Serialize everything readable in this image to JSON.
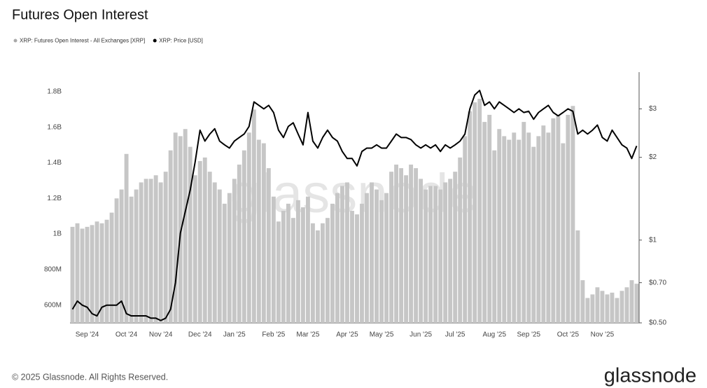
{
  "chart_data": {
    "type": "bar-line",
    "title": "Futures Open Interest",
    "watermark": "glassnode",
    "copyright": "© 2025 Glassnode. All Rights Reserved.",
    "brand": "glassnode",
    "categories": [
      null,
      null,
      null,
      "Sep '24",
      null,
      null,
      null,
      null,
      null,
      null,
      null,
      "Oct '24",
      null,
      null,
      null,
      null,
      null,
      null,
      "Nov '24",
      null,
      null,
      null,
      null,
      null,
      null,
      null,
      "Dec '24",
      null,
      null,
      null,
      null,
      null,
      null,
      "Jan '25",
      null,
      null,
      null,
      null,
      null,
      null,
      null,
      "Feb '25",
      null,
      null,
      null,
      null,
      null,
      null,
      "Mar '25",
      null,
      null,
      null,
      null,
      null,
      null,
      null,
      "Apr '25",
      null,
      null,
      null,
      null,
      null,
      null,
      "May '25",
      null,
      null,
      null,
      null,
      null,
      null,
      null,
      "Jun '25",
      null,
      null,
      null,
      null,
      null,
      null,
      "Jul '25",
      null,
      null,
      null,
      null,
      null,
      null,
      null,
      "Aug '25",
      null,
      null,
      null,
      null,
      null,
      null,
      "Sep '25",
      null,
      null,
      null,
      null,
      null,
      null,
      null,
      "Oct '25",
      null,
      null,
      null,
      null,
      null,
      null,
      "Nov '25",
      null,
      null,
      null,
      null,
      null,
      null,
      null
    ],
    "series": [
      {
        "name": "XRP: Futures Open Interest - All Exchanges [XRP]",
        "color": "#c6c6c6",
        "type": "bar",
        "axis": "y",
        "values": [
          1040000000,
          1060000000,
          1030000000,
          1040000000,
          1050000000,
          1070000000,
          1060000000,
          1080000000,
          1120000000,
          1200000000,
          1250000000,
          1450000000,
          1210000000,
          1250000000,
          1290000000,
          1310000000,
          1310000000,
          1330000000,
          1290000000,
          1350000000,
          1470000000,
          1570000000,
          1550000000,
          1590000000,
          1490000000,
          1330000000,
          1410000000,
          1430000000,
          1350000000,
          1290000000,
          1250000000,
          1170000000,
          1230000000,
          1310000000,
          1390000000,
          1470000000,
          1570000000,
          1700000000,
          1530000000,
          1510000000,
          1370000000,
          1210000000,
          1070000000,
          1130000000,
          1170000000,
          1090000000,
          1190000000,
          1150000000,
          1210000000,
          1060000000,
          1020000000,
          1060000000,
          1090000000,
          1170000000,
          1230000000,
          1270000000,
          1290000000,
          1130000000,
          1110000000,
          1170000000,
          1230000000,
          1290000000,
          1250000000,
          1190000000,
          1230000000,
          1350000000,
          1390000000,
          1370000000,
          1330000000,
          1390000000,
          1370000000,
          1310000000,
          1250000000,
          1270000000,
          1270000000,
          1250000000,
          1290000000,
          1310000000,
          1350000000,
          1430000000,
          1550000000,
          1690000000,
          1740000000,
          1760000000,
          1630000000,
          1670000000,
          1470000000,
          1590000000,
          1550000000,
          1530000000,
          1570000000,
          1530000000,
          1630000000,
          1570000000,
          1490000000,
          1550000000,
          1610000000,
          1570000000,
          1650000000,
          1670000000,
          1510000000,
          1670000000,
          1720000000,
          1020000000,
          740000000,
          640000000,
          660000000,
          700000000,
          680000000,
          660000000,
          670000000,
          640000000,
          680000000,
          700000000,
          740000000,
          720000000
        ]
      },
      {
        "name": "XRP: Price [USD]",
        "color": "#000000",
        "type": "line",
        "axis": "y2",
        "values": [
          0.56,
          0.6,
          0.58,
          0.57,
          0.54,
          0.53,
          0.57,
          0.58,
          0.58,
          0.58,
          0.6,
          0.54,
          0.53,
          0.53,
          0.53,
          0.53,
          0.52,
          0.52,
          0.51,
          0.52,
          0.56,
          0.7,
          1.06,
          1.27,
          1.52,
          1.92,
          2.51,
          2.29,
          2.43,
          2.54,
          2.29,
          2.22,
          2.16,
          2.29,
          2.36,
          2.43,
          2.59,
          3.18,
          3.09,
          3.0,
          3.09,
          2.91,
          2.51,
          2.36,
          2.59,
          2.67,
          2.43,
          2.22,
          2.91,
          2.29,
          2.16,
          2.36,
          2.51,
          2.36,
          2.29,
          2.1,
          1.98,
          1.98,
          1.86,
          2.1,
          2.16,
          2.16,
          2.22,
          2.16,
          2.16,
          2.29,
          2.43,
          2.36,
          2.36,
          2.32,
          2.22,
          2.16,
          2.22,
          2.16,
          2.22,
          2.1,
          2.22,
          2.16,
          2.22,
          2.29,
          2.43,
          3.0,
          3.37,
          3.5,
          3.09,
          3.18,
          3.0,
          3.18,
          3.09,
          3.0,
          2.91,
          3.0,
          2.91,
          2.94,
          2.75,
          2.91,
          3.0,
          3.09,
          2.91,
          2.83,
          2.91,
          3.0,
          2.94,
          2.43,
          2.51,
          2.43,
          2.51,
          2.62,
          2.36,
          2.29,
          2.51,
          2.36,
          2.22,
          2.16,
          1.98,
          2.2
        ]
      }
    ],
    "ylim": [
      500000000,
      1910000000
    ],
    "yticks": [
      {
        "value": 600000000,
        "label": "600M"
      },
      {
        "value": 800000000,
        "label": "800M"
      },
      {
        "value": 1000000000,
        "label": "1B"
      },
      {
        "value": 1200000000,
        "label": "1.2B"
      },
      {
        "value": 1400000000,
        "label": "1.4B"
      },
      {
        "value": 1600000000,
        "label": "1.6B"
      },
      {
        "value": 1800000000,
        "label": "1.8B"
      }
    ],
    "y2lim": [
      0.5,
      4.08
    ],
    "y2scale": "log",
    "y2ticks": [
      {
        "value": 0.5,
        "label": "$0.50"
      },
      {
        "value": 0.7,
        "label": "$0.70"
      },
      {
        "value": 1,
        "label": "$1"
      },
      {
        "value": 2,
        "label": "$2"
      },
      {
        "value": 3,
        "label": "$3"
      }
    ],
    "grid": false,
    "legend": "top-left"
  }
}
